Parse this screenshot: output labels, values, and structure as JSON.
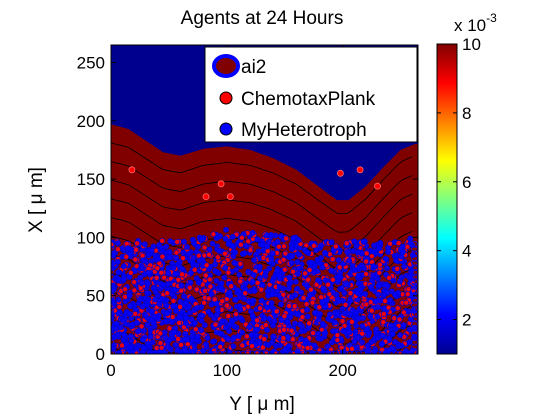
{
  "chart_data": {
    "type": "scatter",
    "title": "Agents at 24 Hours",
    "xlabel": "Y [ μ m]",
    "ylabel": "X [ μ m]",
    "xlim": [
      0,
      265
    ],
    "ylim": [
      0,
      265
    ],
    "xticks": [
      "0",
      "100",
      "200"
    ],
    "yticks": [
      "0",
      "50",
      "100",
      "150",
      "200",
      "250"
    ],
    "legend": {
      "placement": "top-right",
      "entries": [
        "ai2",
        "ChemotaxPlank",
        "MyHeterotroph"
      ]
    },
    "background_field": {
      "name": "ai2",
      "colorbar_ticks": [
        "2",
        "4",
        "6",
        "8",
        "10"
      ],
      "colorbar_exponent": "x 10",
      "colorbar_exponent_power": "-3",
      "colorbar_range": [
        1,
        10
      ],
      "front_profile": [
        [
          0,
          197
        ],
        [
          15,
          193
        ],
        [
          30,
          183
        ],
        [
          45,
          173
        ],
        [
          60,
          170
        ],
        [
          80,
          176
        ],
        [
          100,
          178
        ],
        [
          120,
          175
        ],
        [
          140,
          168
        ],
        [
          160,
          158
        ],
        [
          180,
          143
        ],
        [
          195,
          132
        ],
        [
          205,
          132
        ],
        [
          220,
          144
        ],
        [
          235,
          160
        ],
        [
          250,
          175
        ],
        [
          262,
          180
        ]
      ]
    },
    "series": [
      {
        "name": "ChemotaxPlank",
        "color": "#ff0000",
        "points": [
          [
            18,
            158
          ],
          [
            82,
            135
          ],
          [
            95,
            146
          ],
          [
            103,
            135
          ],
          [
            198,
            155
          ],
          [
            215,
            158
          ],
          [
            230,
            144
          ]
        ]
      },
      {
        "name": "MyHeterotroph",
        "color": "#0000ff",
        "region": {
          "x_range": [
            0,
            262
          ],
          "y_range": [
            0,
            100
          ],
          "top_profile": [
            [
              0,
              98
            ],
            [
              60,
              97
            ],
            [
              100,
              107
            ],
            [
              140,
              102
            ],
            [
              200,
              96
            ],
            [
              262,
              100
            ]
          ]
        }
      }
    ]
  }
}
